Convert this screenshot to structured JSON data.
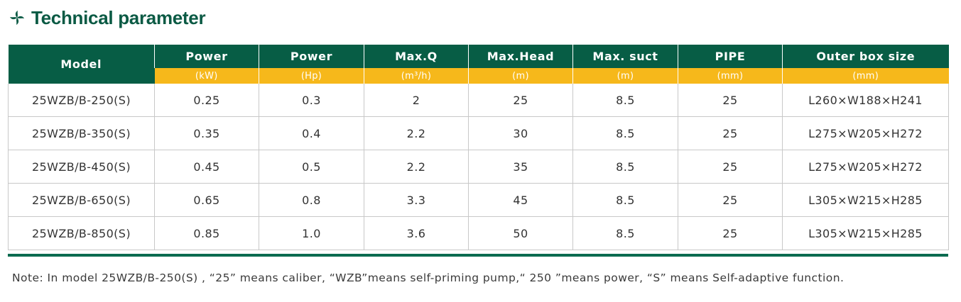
{
  "header": {
    "title": "Technical parameter",
    "logo_icon": "swirl-leaf-icon",
    "brand_color": "#0b5a44"
  },
  "table": {
    "columns": [
      {
        "label": "Model",
        "unit": ""
      },
      {
        "label": "Power",
        "unit": "(kW)"
      },
      {
        "label": "Power",
        "unit": "(Hp)"
      },
      {
        "label": "Max.Q",
        "unit": "(m³/h)"
      },
      {
        "label": "Max.Head",
        "unit": "(m)"
      },
      {
        "label": "Max. suct",
        "unit": "(m)"
      },
      {
        "label": "PIPE",
        "unit": "(mm)"
      },
      {
        "label": "Outer box size",
        "unit": "(mm)"
      }
    ],
    "rows": [
      [
        "25WZB/B-250(S)",
        "0.25",
        "0.3",
        "2",
        "25",
        "8.5",
        "25",
        "L260×W188×H241"
      ],
      [
        "25WZB/B-350(S)",
        "0.35",
        "0.4",
        "2.2",
        "30",
        "8.5",
        "25",
        "L275×W205×H272"
      ],
      [
        "25WZB/B-450(S)",
        "0.45",
        "0.5",
        "2.2",
        "35",
        "8.5",
        "25",
        "L275×W205×H272"
      ],
      [
        "25WZB/B-650(S)",
        "0.65",
        "0.8",
        "3.3",
        "45",
        "8.5",
        "25",
        "L305×W215×H285"
      ],
      [
        "25WZB/B-850(S)",
        "0.85",
        "1.0",
        "3.6",
        "50",
        "8.5",
        "25",
        "L305×W215×H285"
      ]
    ],
    "header_color": "#075d45",
    "unit_row_color": "#f6b81b"
  },
  "note": "Note: In model 25WZB/B-250(S) , “25” means caliber, “WZB”means self-priming pump,“ 250 ”means power, “S” means Self-adaptive function."
}
